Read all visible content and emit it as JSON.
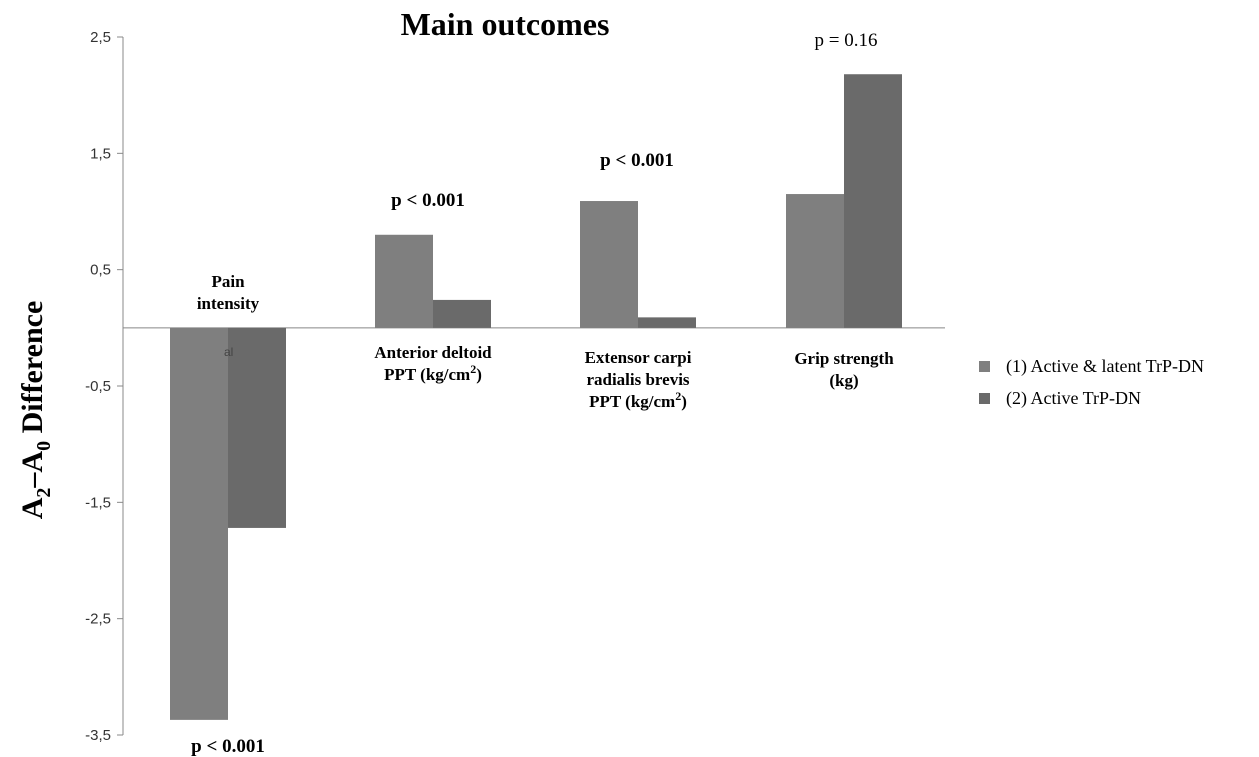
{
  "chart_data": {
    "type": "bar",
    "title": "Main outcomes",
    "ylabel": "A2–A0 Difference",
    "ylabel_main": "A",
    "ylabel_sub1": "2",
    "ylabel_mid": "–A",
    "ylabel_sub2": "0",
    "ylabel_tail": " Difference",
    "ylim": [
      -3.5,
      2.5
    ],
    "yticks": [
      2.5,
      1.5,
      0.5,
      -0.5,
      -1.5,
      -2.5,
      -3.5
    ],
    "ytick_labels": [
      "2,5",
      "1,5",
      "0,5",
      "-0,5",
      "-1,5",
      "-2,5",
      "-3,5"
    ],
    "grid": false,
    "legend_position": "right",
    "categories": [
      "Pain intensity",
      "Anterior deltoid PPT (kg/cm2)",
      "Extensor carpi radialis brevis PPT (kg/cm2)",
      "Grip strength (kg)"
    ],
    "category_label_lines": [
      [
        {
          "t": "Pain"
        },
        {
          "t": "intensity"
        }
      ],
      [
        {
          "t": "Anterior deltoid"
        },
        {
          "t": "PPT (kg/cm",
          "sup": "2",
          "tail": ")"
        }
      ],
      [
        {
          "t": "Extensor carpi"
        },
        {
          "t": "radialis brevis"
        },
        {
          "t": "PPT (kg/cm",
          "sup": "2",
          "tail": ")"
        }
      ],
      [
        {
          "t": "Grip strength"
        },
        {
          "t": "(kg)"
        }
      ]
    ],
    "series": [
      {
        "name": "(1) Active & latent TrP-DN",
        "values": [
          -3.37,
          0.8,
          1.09,
          1.15
        ],
        "color": "#7f7f7f"
      },
      {
        "name": "(2) Active TrP-DN",
        "values": [
          -1.72,
          0.24,
          0.09,
          2.18
        ],
        "color": "#6a6a6a"
      }
    ],
    "p_values": [
      {
        "text": "p < 0.001",
        "bold": true
      },
      {
        "text": "p < 0.001",
        "bold": true
      },
      {
        "text": "p < 0.001",
        "bold": true
      },
      {
        "text": "p = 0.16",
        "bold": false
      }
    ],
    "stray_text": "al"
  }
}
